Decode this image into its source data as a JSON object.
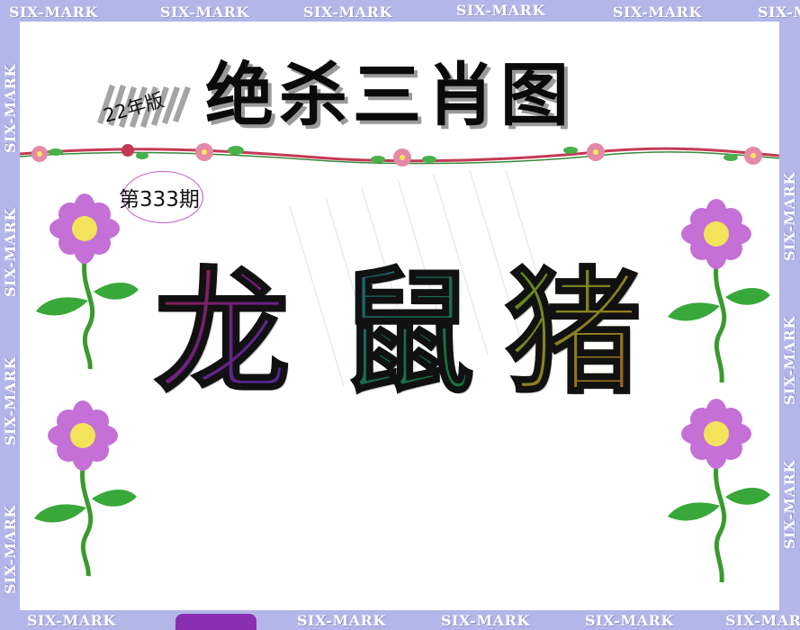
{
  "watermark": "SIX-MARK",
  "header": {
    "title": "绝杀三肖图",
    "edition": "22年版"
  },
  "issue": "第333期",
  "zodiacs": [
    "龙",
    "鼠",
    "猪"
  ],
  "colors": {
    "border": "#b3b6e8",
    "petal": "#c470d6",
    "flower_center": "#f2e35a",
    "leaf": "#39a83a",
    "stem": "#3a9a2e",
    "issue_ring": "#c65bc8"
  }
}
